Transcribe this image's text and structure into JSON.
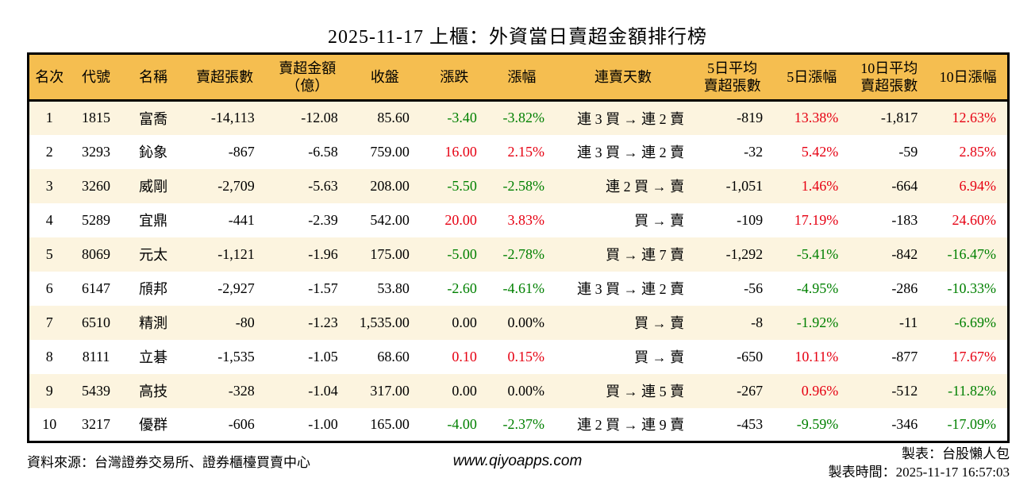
{
  "title": "2025-11-17 上櫃：外資當日賣超金額排行榜",
  "colors": {
    "up": "#e60012",
    "down": "#008000",
    "neutral": "#000000",
    "header_bg": "#f5be50",
    "row_alt_bg": "#fcf4df",
    "border": "#000000"
  },
  "chart_data": {
    "type": "table",
    "title": "2025-11-17 上櫃：外資當日賣超金額排行榜",
    "columns": [
      "名次",
      "代號",
      "名稱",
      "賣超張數",
      "賣超金額（億）",
      "收盤",
      "漲跌",
      "漲幅",
      "連賣天數",
      "5日平均賣超張數",
      "5日漲幅",
      "10日平均賣超張數",
      "10日漲幅"
    ],
    "rows": [
      [
        "1",
        "1815",
        "富喬",
        "-14,113",
        "-12.08",
        "85.60",
        "-3.40",
        "-3.82%",
        "連 3 買 → 連 2 賣",
        "-819",
        "13.38%",
        "-1,817",
        "12.63%"
      ],
      [
        "2",
        "3293",
        "鈊象",
        "-867",
        "-6.58",
        "759.00",
        "16.00",
        "2.15%",
        "連 3 買 → 連 2 賣",
        "-32",
        "5.42%",
        "-59",
        "2.85%"
      ],
      [
        "3",
        "3260",
        "威剛",
        "-2,709",
        "-5.63",
        "208.00",
        "-5.50",
        "-2.58%",
        "連 2 買 → 賣",
        "-1,051",
        "1.46%",
        "-664",
        "6.94%"
      ],
      [
        "4",
        "5289",
        "宜鼎",
        "-441",
        "-2.39",
        "542.00",
        "20.00",
        "3.83%",
        "買 → 賣",
        "-109",
        "17.19%",
        "-183",
        "24.60%"
      ],
      [
        "5",
        "8069",
        "元太",
        "-1,121",
        "-1.96",
        "175.00",
        "-5.00",
        "-2.78%",
        "買 → 連 7 賣",
        "-1,292",
        "-5.41%",
        "-842",
        "-16.47%"
      ],
      [
        "6",
        "6147",
        "頎邦",
        "-2,927",
        "-1.57",
        "53.80",
        "-2.60",
        "-4.61%",
        "連 3 買 → 連 2 賣",
        "-56",
        "-4.95%",
        "-286",
        "-10.33%"
      ],
      [
        "7",
        "6510",
        "精測",
        "-80",
        "-1.23",
        "1,535.00",
        "0.00",
        "0.00%",
        "買 → 賣",
        "-8",
        "-1.92%",
        "-11",
        "-6.69%"
      ],
      [
        "8",
        "8111",
        "立碁",
        "-1,535",
        "-1.05",
        "68.60",
        "0.10",
        "0.15%",
        "買 → 賣",
        "-650",
        "10.11%",
        "-877",
        "17.67%"
      ],
      [
        "9",
        "5439",
        "高技",
        "-328",
        "-1.04",
        "317.00",
        "0.00",
        "0.00%",
        "買 → 連 5 賣",
        "-267",
        "0.96%",
        "-512",
        "-11.82%"
      ],
      [
        "10",
        "3217",
        "優群",
        "-606",
        "-1.00",
        "165.00",
        "-4.00",
        "-2.37%",
        "連 2 買 → 連 9 賣",
        "-453",
        "-9.59%",
        "-346",
        "-17.09%"
      ]
    ]
  },
  "table": {
    "headers": [
      "名次",
      "代號",
      "名稱",
      "賣超張數",
      "賣超金額\n（億）",
      "收盤",
      "漲跌",
      "漲幅",
      "連賣天數",
      "5日平均\n賣超張數",
      "5日漲幅",
      "10日平均\n賣超張數",
      "10日漲幅"
    ],
    "rows": [
      {
        "rank": "1",
        "code": "1815",
        "name": "富喬",
        "sell_volume": "-14,113",
        "sell_amount": "-12.08",
        "close": "85.60",
        "change": "-3.40",
        "change_pct": "-3.82%",
        "streak": "連 3 買 → 連 2 賣",
        "avg5": "-819",
        "pct5": "13.38%",
        "avg10": "-1,817",
        "pct10": "12.63%"
      },
      {
        "rank": "2",
        "code": "3293",
        "name": "鈊象",
        "sell_volume": "-867",
        "sell_amount": "-6.58",
        "close": "759.00",
        "change": "16.00",
        "change_pct": "2.15%",
        "streak": "連 3 買 → 連 2 賣",
        "avg5": "-32",
        "pct5": "5.42%",
        "avg10": "-59",
        "pct10": "2.85%"
      },
      {
        "rank": "3",
        "code": "3260",
        "name": "威剛",
        "sell_volume": "-2,709",
        "sell_amount": "-5.63",
        "close": "208.00",
        "change": "-5.50",
        "change_pct": "-2.58%",
        "streak": "連 2 買 → 賣",
        "avg5": "-1,051",
        "pct5": "1.46%",
        "avg10": "-664",
        "pct10": "6.94%"
      },
      {
        "rank": "4",
        "code": "5289",
        "name": "宜鼎",
        "sell_volume": "-441",
        "sell_amount": "-2.39",
        "close": "542.00",
        "change": "20.00",
        "change_pct": "3.83%",
        "streak": "買 → 賣",
        "avg5": "-109",
        "pct5": "17.19%",
        "avg10": "-183",
        "pct10": "24.60%"
      },
      {
        "rank": "5",
        "code": "8069",
        "name": "元太",
        "sell_volume": "-1,121",
        "sell_amount": "-1.96",
        "close": "175.00",
        "change": "-5.00",
        "change_pct": "-2.78%",
        "streak": "買 → 連 7 賣",
        "avg5": "-1,292",
        "pct5": "-5.41%",
        "avg10": "-842",
        "pct10": "-16.47%"
      },
      {
        "rank": "6",
        "code": "6147",
        "name": "頎邦",
        "sell_volume": "-2,927",
        "sell_amount": "-1.57",
        "close": "53.80",
        "change": "-2.60",
        "change_pct": "-4.61%",
        "streak": "連 3 買 → 連 2 賣",
        "avg5": "-56",
        "pct5": "-4.95%",
        "avg10": "-286",
        "pct10": "-10.33%"
      },
      {
        "rank": "7",
        "code": "6510",
        "name": "精測",
        "sell_volume": "-80",
        "sell_amount": "-1.23",
        "close": "1,535.00",
        "change": "0.00",
        "change_pct": "0.00%",
        "streak": "買 → 賣",
        "avg5": "-8",
        "pct5": "-1.92%",
        "avg10": "-11",
        "pct10": "-6.69%"
      },
      {
        "rank": "8",
        "code": "8111",
        "name": "立碁",
        "sell_volume": "-1,535",
        "sell_amount": "-1.05",
        "close": "68.60",
        "change": "0.10",
        "change_pct": "0.15%",
        "streak": "買 → 賣",
        "avg5": "-650",
        "pct5": "10.11%",
        "avg10": "-877",
        "pct10": "17.67%"
      },
      {
        "rank": "9",
        "code": "5439",
        "name": "高技",
        "sell_volume": "-328",
        "sell_amount": "-1.04",
        "close": "317.00",
        "change": "0.00",
        "change_pct": "0.00%",
        "streak": "買 → 連 5 賣",
        "avg5": "-267",
        "pct5": "0.96%",
        "avg10": "-512",
        "pct10": "-11.82%"
      },
      {
        "rank": "10",
        "code": "3217",
        "name": "優群",
        "sell_volume": "-606",
        "sell_amount": "-1.00",
        "close": "165.00",
        "change": "-4.00",
        "change_pct": "-2.37%",
        "streak": "連 2 買 → 連 9 賣",
        "avg5": "-453",
        "pct5": "-9.59%",
        "avg10": "-346",
        "pct10": "-17.09%"
      }
    ]
  },
  "footer": {
    "source": "資料來源：台灣證券交易所、證券櫃檯買賣中心",
    "url": "www.qiyoapps.com",
    "made_by": "製表：台股懶人包",
    "made_at": "製表時間：2025-11-17 16:57:03"
  }
}
